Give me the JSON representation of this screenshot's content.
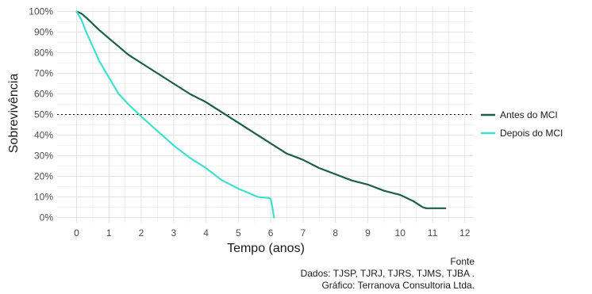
{
  "chart_data": {
    "type": "line",
    "title": "",
    "xlabel": "Tempo (anos)",
    "ylabel": "Sobrevivência",
    "xlim": [
      -0.6,
      12.25
    ],
    "ylim": [
      -0.025,
      1.025
    ],
    "xticks": [
      0,
      1,
      2,
      3,
      4,
      5,
      6,
      7,
      8,
      9,
      10,
      11,
      12
    ],
    "yticks": [
      0,
      0.1,
      0.2,
      0.3,
      0.4,
      0.5,
      0.6,
      0.7,
      0.8,
      0.9,
      1.0
    ],
    "ytick_labels": [
      "0%",
      "10%",
      "20%",
      "30%",
      "40%",
      "50%",
      "60%",
      "70%",
      "80%",
      "90%",
      "100%"
    ],
    "reference_line": {
      "y": 0.5,
      "style": "dotted",
      "color": "#000000"
    },
    "grid": true,
    "legend_position": "right",
    "series": [
      {
        "name": "Antes do MCI",
        "color": "#1b5e4b",
        "x": [
          0,
          0.15,
          0.3,
          0.5,
          0.7,
          1.0,
          1.3,
          1.6,
          2.0,
          2.5,
          3.0,
          3.5,
          4.0,
          4.5,
          5.0,
          5.5,
          6.0,
          6.5,
          7.0,
          7.5,
          8.0,
          8.5,
          9.0,
          9.5,
          10.0,
          10.4,
          10.7,
          10.8,
          11.1,
          11.4
        ],
        "y": [
          1.0,
          0.99,
          0.97,
          0.94,
          0.91,
          0.87,
          0.83,
          0.79,
          0.75,
          0.7,
          0.65,
          0.6,
          0.56,
          0.51,
          0.46,
          0.41,
          0.36,
          0.31,
          0.28,
          0.24,
          0.21,
          0.18,
          0.16,
          0.13,
          0.11,
          0.08,
          0.05,
          0.045,
          0.045,
          0.045
        ]
      },
      {
        "name": "Depois do MCI",
        "color": "#40e0d0",
        "x": [
          0,
          0.15,
          0.3,
          0.5,
          0.7,
          1.0,
          1.3,
          1.6,
          2.0,
          2.5,
          3.0,
          3.5,
          4.0,
          4.5,
          5.0,
          5.3,
          5.6,
          5.95,
          6.0,
          6.05,
          6.1
        ],
        "y": [
          1.0,
          0.96,
          0.9,
          0.83,
          0.76,
          0.68,
          0.6,
          0.55,
          0.49,
          0.42,
          0.35,
          0.29,
          0.24,
          0.18,
          0.14,
          0.12,
          0.1,
          0.095,
          0.09,
          0.05,
          0.0
        ]
      }
    ]
  },
  "caption": {
    "line1": "Fonte",
    "line2": "Dados: TJSP, TJRJ, TJRS, TJMS, TJBA .",
    "line3": "Gráfico: Terranova Consultoria Ltda."
  }
}
